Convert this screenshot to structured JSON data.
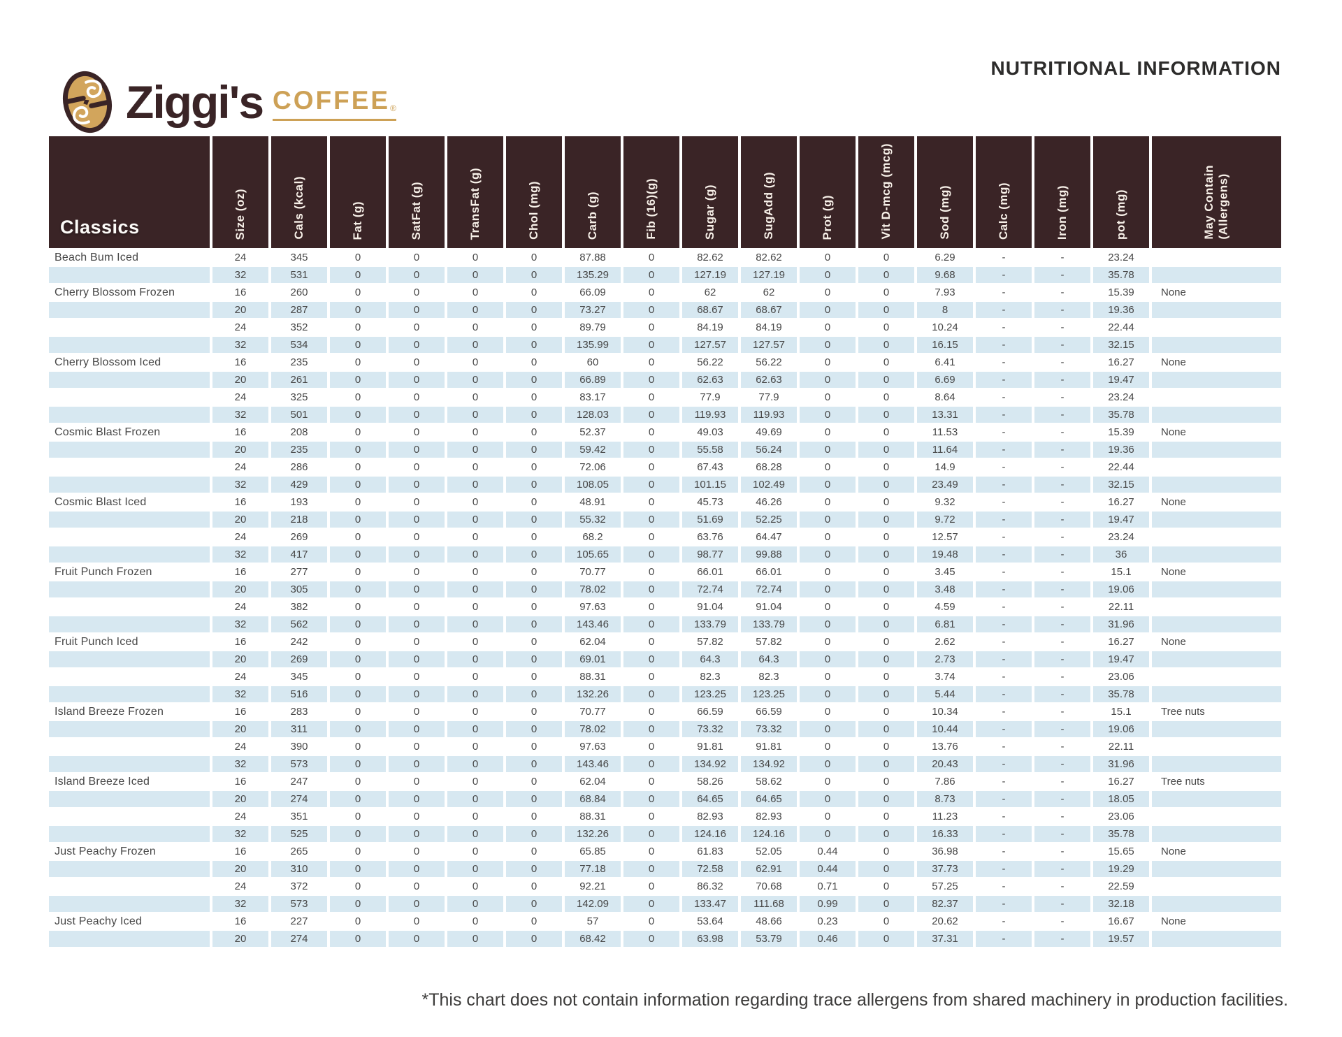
{
  "brand": {
    "wordmark": "Ziggi's",
    "product": "COFFEE",
    "reg": "®",
    "colors": {
      "brown": "#3a2426",
      "gold": "#cda156",
      "light_blue": "#d7e8f1"
    }
  },
  "page_title": "NUTRITIONAL INFORMATION",
  "table": {
    "group_header": "Classics",
    "columns": [
      "Size (oz)",
      "Cals (kcal)",
      "Fat (g)",
      "SatFat (g)",
      "TransFat (g)",
      "Chol (mg)",
      "Carb (g)",
      "Fib (16)(g)",
      "Sugar (g)",
      "SugAdd (g)",
      "Prot (g)",
      "Vit D-mcg (mcg)",
      "Sod (mg)",
      "Calc (mg)",
      "Iron (mg)",
      "pot (mg)",
      "May Contain\n(Allergens)"
    ],
    "rows": [
      [
        "Beach Bum Iced",
        "24",
        "345",
        "0",
        "0",
        "0",
        "0",
        "87.88",
        "0",
        "82.62",
        "82.62",
        "0",
        "0",
        "6.29",
        "-",
        "-",
        "23.24",
        ""
      ],
      [
        "",
        "32",
        "531",
        "0",
        "0",
        "0",
        "0",
        "135.29",
        "0",
        "127.19",
        "127.19",
        "0",
        "0",
        "9.68",
        "-",
        "-",
        "35.78",
        ""
      ],
      [
        "Cherry Blossom Frozen",
        "16",
        "260",
        "0",
        "0",
        "0",
        "0",
        "66.09",
        "0",
        "62",
        "62",
        "0",
        "0",
        "7.93",
        "-",
        "-",
        "15.39",
        "None"
      ],
      [
        "",
        "20",
        "287",
        "0",
        "0",
        "0",
        "0",
        "73.27",
        "0",
        "68.67",
        "68.67",
        "0",
        "0",
        "8",
        "-",
        "-",
        "19.36",
        ""
      ],
      [
        "",
        "24",
        "352",
        "0",
        "0",
        "0",
        "0",
        "89.79",
        "0",
        "84.19",
        "84.19",
        "0",
        "0",
        "10.24",
        "-",
        "-",
        "22.44",
        ""
      ],
      [
        "",
        "32",
        "534",
        "0",
        "0",
        "0",
        "0",
        "135.99",
        "0",
        "127.57",
        "127.57",
        "0",
        "0",
        "16.15",
        "-",
        "-",
        "32.15",
        ""
      ],
      [
        "Cherry Blossom Iced",
        "16",
        "235",
        "0",
        "0",
        "0",
        "0",
        "60",
        "0",
        "56.22",
        "56.22",
        "0",
        "0",
        "6.41",
        "-",
        "-",
        "16.27",
        "None"
      ],
      [
        "",
        "20",
        "261",
        "0",
        "0",
        "0",
        "0",
        "66.89",
        "0",
        "62.63",
        "62.63",
        "0",
        "0",
        "6.69",
        "-",
        "-",
        "19.47",
        ""
      ],
      [
        "",
        "24",
        "325",
        "0",
        "0",
        "0",
        "0",
        "83.17",
        "0",
        "77.9",
        "77.9",
        "0",
        "0",
        "8.64",
        "-",
        "-",
        "23.24",
        ""
      ],
      [
        "",
        "32",
        "501",
        "0",
        "0",
        "0",
        "0",
        "128.03",
        "0",
        "119.93",
        "119.93",
        "0",
        "0",
        "13.31",
        "-",
        "-",
        "35.78",
        ""
      ],
      [
        "Cosmic Blast Frozen",
        "16",
        "208",
        "0",
        "0",
        "0",
        "0",
        "52.37",
        "0",
        "49.03",
        "49.69",
        "0",
        "0",
        "11.53",
        "-",
        "-",
        "15.39",
        "None"
      ],
      [
        "",
        "20",
        "235",
        "0",
        "0",
        "0",
        "0",
        "59.42",
        "0",
        "55.58",
        "56.24",
        "0",
        "0",
        "11.64",
        "-",
        "-",
        "19.36",
        ""
      ],
      [
        "",
        "24",
        "286",
        "0",
        "0",
        "0",
        "0",
        "72.06",
        "0",
        "67.43",
        "68.28",
        "0",
        "0",
        "14.9",
        "-",
        "-",
        "22.44",
        ""
      ],
      [
        "",
        "32",
        "429",
        "0",
        "0",
        "0",
        "0",
        "108.05",
        "0",
        "101.15",
        "102.49",
        "0",
        "0",
        "23.49",
        "-",
        "-",
        "32.15",
        ""
      ],
      [
        "Cosmic Blast Iced",
        "16",
        "193",
        "0",
        "0",
        "0",
        "0",
        "48.91",
        "0",
        "45.73",
        "46.26",
        "0",
        "0",
        "9.32",
        "-",
        "-",
        "16.27",
        "None"
      ],
      [
        "",
        "20",
        "218",
        "0",
        "0",
        "0",
        "0",
        "55.32",
        "0",
        "51.69",
        "52.25",
        "0",
        "0",
        "9.72",
        "-",
        "-",
        "19.47",
        ""
      ],
      [
        "",
        "24",
        "269",
        "0",
        "0",
        "0",
        "0",
        "68.2",
        "0",
        "63.76",
        "64.47",
        "0",
        "0",
        "12.57",
        "-",
        "-",
        "23.24",
        ""
      ],
      [
        "",
        "32",
        "417",
        "0",
        "0",
        "0",
        "0",
        "105.65",
        "0",
        "98.77",
        "99.88",
        "0",
        "0",
        "19.48",
        "-",
        "-",
        "36",
        ""
      ],
      [
        "Fruit Punch Frozen",
        "16",
        "277",
        "0",
        "0",
        "0",
        "0",
        "70.77",
        "0",
        "66.01",
        "66.01",
        "0",
        "0",
        "3.45",
        "-",
        "-",
        "15.1",
        "None"
      ],
      [
        "",
        "20",
        "305",
        "0",
        "0",
        "0",
        "0",
        "78.02",
        "0",
        "72.74",
        "72.74",
        "0",
        "0",
        "3.48",
        "-",
        "-",
        "19.06",
        ""
      ],
      [
        "",
        "24",
        "382",
        "0",
        "0",
        "0",
        "0",
        "97.63",
        "0",
        "91.04",
        "91.04",
        "0",
        "0",
        "4.59",
        "-",
        "-",
        "22.11",
        ""
      ],
      [
        "",
        "32",
        "562",
        "0",
        "0",
        "0",
        "0",
        "143.46",
        "0",
        "133.79",
        "133.79",
        "0",
        "0",
        "6.81",
        "-",
        "-",
        "31.96",
        ""
      ],
      [
        "Fruit Punch Iced",
        "16",
        "242",
        "0",
        "0",
        "0",
        "0",
        "62.04",
        "0",
        "57.82",
        "57.82",
        "0",
        "0",
        "2.62",
        "-",
        "-",
        "16.27",
        "None"
      ],
      [
        "",
        "20",
        "269",
        "0",
        "0",
        "0",
        "0",
        "69.01",
        "0",
        "64.3",
        "64.3",
        "0",
        "0",
        "2.73",
        "-",
        "-",
        "19.47",
        ""
      ],
      [
        "",
        "24",
        "345",
        "0",
        "0",
        "0",
        "0",
        "88.31",
        "0",
        "82.3",
        "82.3",
        "0",
        "0",
        "3.74",
        "-",
        "-",
        "23.06",
        ""
      ],
      [
        "",
        "32",
        "516",
        "0",
        "0",
        "0",
        "0",
        "132.26",
        "0",
        "123.25",
        "123.25",
        "0",
        "0",
        "5.44",
        "-",
        "-",
        "35.78",
        ""
      ],
      [
        "Island Breeze Frozen",
        "16",
        "283",
        "0",
        "0",
        "0",
        "0",
        "70.77",
        "0",
        "66.59",
        "66.59",
        "0",
        "0",
        "10.34",
        "-",
        "-",
        "15.1",
        "Tree nuts"
      ],
      [
        "",
        "20",
        "311",
        "0",
        "0",
        "0",
        "0",
        "78.02",
        "0",
        "73.32",
        "73.32",
        "0",
        "0",
        "10.44",
        "-",
        "-",
        "19.06",
        ""
      ],
      [
        "",
        "24",
        "390",
        "0",
        "0",
        "0",
        "0",
        "97.63",
        "0",
        "91.81",
        "91.81",
        "0",
        "0",
        "13.76",
        "-",
        "-",
        "22.11",
        ""
      ],
      [
        "",
        "32",
        "573",
        "0",
        "0",
        "0",
        "0",
        "143.46",
        "0",
        "134.92",
        "134.92",
        "0",
        "0",
        "20.43",
        "-",
        "-",
        "31.96",
        ""
      ],
      [
        "Island Breeze Iced",
        "16",
        "247",
        "0",
        "0",
        "0",
        "0",
        "62.04",
        "0",
        "58.26",
        "58.62",
        "0",
        "0",
        "7.86",
        "-",
        "-",
        "16.27",
        "Tree nuts"
      ],
      [
        "",
        "20",
        "274",
        "0",
        "0",
        "0",
        "0",
        "68.84",
        "0",
        "64.65",
        "64.65",
        "0",
        "0",
        "8.73",
        "-",
        "-",
        "18.05",
        ""
      ],
      [
        "",
        "24",
        "351",
        "0",
        "0",
        "0",
        "0",
        "88.31",
        "0",
        "82.93",
        "82.93",
        "0",
        "0",
        "11.23",
        "-",
        "-",
        "23.06",
        ""
      ],
      [
        "",
        "32",
        "525",
        "0",
        "0",
        "0",
        "0",
        "132.26",
        "0",
        "124.16",
        "124.16",
        "0",
        "0",
        "16.33",
        "-",
        "-",
        "35.78",
        ""
      ],
      [
        "Just Peachy Frozen",
        "16",
        "265",
        "0",
        "0",
        "0",
        "0",
        "65.85",
        "0",
        "61.83",
        "52.05",
        "0.44",
        "0",
        "36.98",
        "-",
        "-",
        "15.65",
        "None"
      ],
      [
        "",
        "20",
        "310",
        "0",
        "0",
        "0",
        "0",
        "77.18",
        "0",
        "72.58",
        "62.91",
        "0.44",
        "0",
        "37.73",
        "-",
        "-",
        "19.29",
        ""
      ],
      [
        "",
        "24",
        "372",
        "0",
        "0",
        "0",
        "0",
        "92.21",
        "0",
        "86.32",
        "70.68",
        "0.71",
        "0",
        "57.25",
        "-",
        "-",
        "22.59",
        ""
      ],
      [
        "",
        "32",
        "573",
        "0",
        "0",
        "0",
        "0",
        "142.09",
        "0",
        "133.47",
        "111.68",
        "0.99",
        "0",
        "82.37",
        "-",
        "-",
        "32.18",
        ""
      ],
      [
        "Just Peachy Iced",
        "16",
        "227",
        "0",
        "0",
        "0",
        "0",
        "57",
        "0",
        "53.64",
        "48.66",
        "0.23",
        "0",
        "20.62",
        "-",
        "-",
        "16.67",
        "None"
      ],
      [
        "",
        "20",
        "274",
        "0",
        "0",
        "0",
        "0",
        "68.42",
        "0",
        "63.98",
        "53.79",
        "0.46",
        "0",
        "37.31",
        "-",
        "-",
        "19.57",
        ""
      ]
    ]
  },
  "footnote": "*This chart does not contain information regarding trace allergens from shared machinery in production facilities."
}
